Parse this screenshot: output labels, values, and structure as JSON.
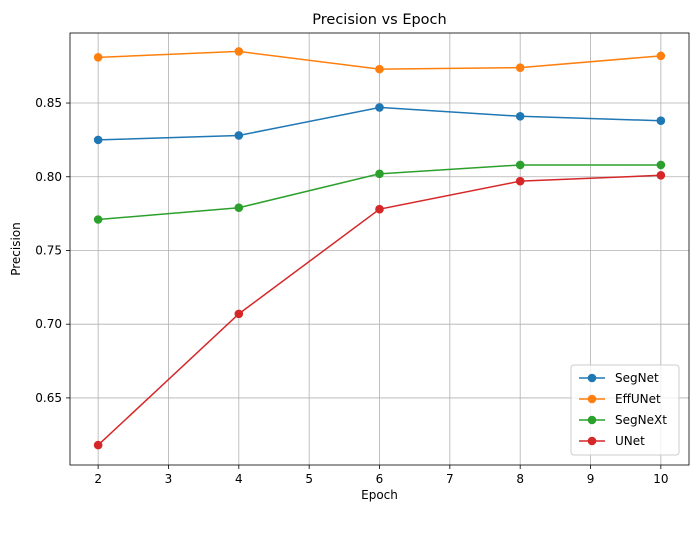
{
  "chart_data": {
    "type": "line",
    "title": "Precision vs Epoch",
    "xlabel": "Epoch",
    "ylabel": "Precision",
    "x": [
      2,
      4,
      6,
      8,
      10
    ],
    "xlim": [
      1.6,
      10.4
    ],
    "ylim": [
      0.6045,
      0.8975
    ],
    "xticks": [
      2,
      3,
      4,
      5,
      6,
      7,
      8,
      9,
      10
    ],
    "yticks": [
      0.65,
      0.7,
      0.75,
      0.8,
      0.85
    ],
    "ytick_labels": [
      "0.65",
      "0.70",
      "0.75",
      "0.80",
      "0.85"
    ],
    "grid": true,
    "legend_position": "lower-right",
    "series": [
      {
        "name": "SegNet",
        "color": "#1f77b4",
        "values": [
          0.825,
          0.828,
          0.847,
          0.841,
          0.838
        ]
      },
      {
        "name": "EffUNet",
        "color": "#ff7f0e",
        "values": [
          0.881,
          0.885,
          0.873,
          0.874,
          0.882
        ]
      },
      {
        "name": "SegNeXt",
        "color": "#2ca02c",
        "values": [
          0.771,
          0.779,
          0.802,
          0.808,
          0.808
        ]
      },
      {
        "name": "UNet",
        "color": "#d62728",
        "values": [
          0.618,
          0.707,
          0.778,
          0.797,
          0.801
        ]
      }
    ]
  }
}
